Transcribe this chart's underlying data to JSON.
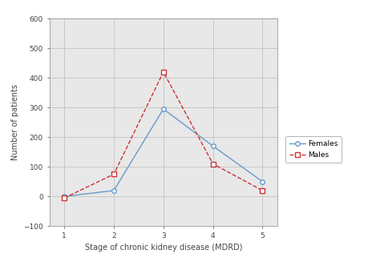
{
  "x": [
    1,
    2,
    3,
    4,
    5
  ],
  "females_y": [
    0,
    20,
    295,
    170,
    50
  ],
  "males_y": [
    -5,
    75,
    420,
    110,
    20
  ],
  "females_color": "#6699cc",
  "males_color": "#cc3333",
  "females_label": "Females",
  "males_label": "Males",
  "females_marker": "o",
  "males_marker": "s",
  "females_linestyle": "-",
  "males_linestyle": "--",
  "xlabel": "Stage of chronic kidney disease (MDRD)",
  "ylabel": "Number of patients",
  "xlim": [
    0.7,
    5.3
  ],
  "ylim": [
    -100,
    600
  ],
  "yticks": [
    -100,
    0,
    100,
    200,
    300,
    400,
    500,
    600
  ],
  "xticks": [
    1,
    2,
    3,
    4,
    5
  ],
  "background_color": "#ffffff",
  "axes_bg_color": "#e8e8e8"
}
